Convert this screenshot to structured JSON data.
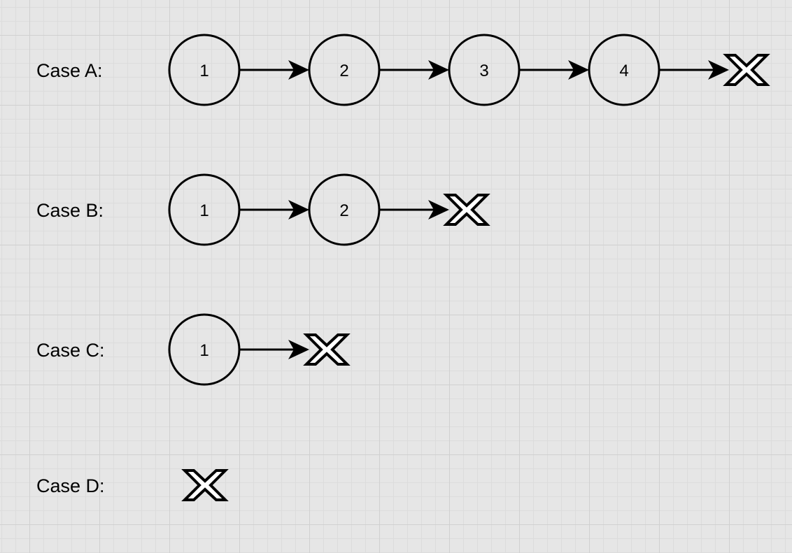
{
  "diagram": {
    "colors": {
      "background": "#e6e6e6",
      "stroke": "#000000",
      "null_fill": "#ffffff"
    },
    "cases": [
      {
        "label": "Case A:",
        "nodes": [
          "1",
          "2",
          "3",
          "4"
        ],
        "terminator": "x-icon"
      },
      {
        "label": "Case B:",
        "nodes": [
          "1",
          "2"
        ],
        "terminator": "x-icon"
      },
      {
        "label": "Case C:",
        "nodes": [
          "1"
        ],
        "terminator": "x-icon"
      },
      {
        "label": "Case D:",
        "nodes": [],
        "terminator": "x-icon"
      }
    ]
  }
}
